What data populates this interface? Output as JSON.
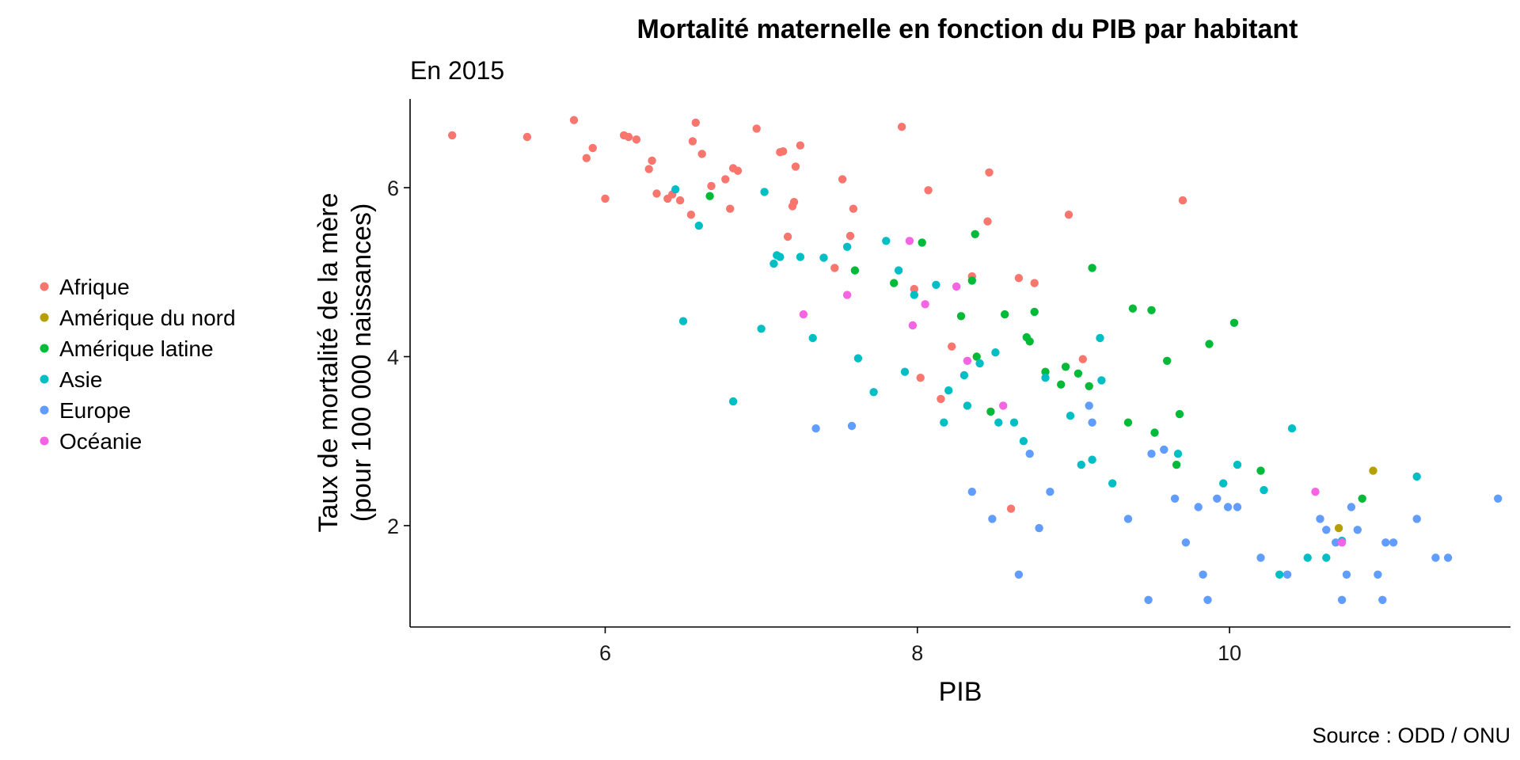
{
  "chart_data": {
    "type": "scatter",
    "title": "Mortalité maternelle en fonction du PIB par habitant",
    "subtitle": "En 2015",
    "xlabel": "PIB",
    "ylabel_lines": [
      "Taux de mortalité de la mère",
      "(pour 100 000 naissances)"
    ],
    "caption": "Source : ODD / ONU",
    "xlim": [
      4.75,
      11.8
    ],
    "ylim": [
      0.8,
      7.05
    ],
    "x_ticks": [
      6,
      8,
      10
    ],
    "y_ticks": [
      2,
      4,
      6
    ],
    "grid": false,
    "legend_position": "left",
    "series": [
      {
        "name": "Afrique",
        "color": "#F8766D",
        "points": [
          [
            5.02,
            6.62
          ],
          [
            5.5,
            6.6
          ],
          [
            5.8,
            6.8
          ],
          [
            5.88,
            6.35
          ],
          [
            5.92,
            6.47
          ],
          [
            6.0,
            5.87
          ],
          [
            6.12,
            6.62
          ],
          [
            6.15,
            6.6
          ],
          [
            6.2,
            6.57
          ],
          [
            6.28,
            6.22
          ],
          [
            6.3,
            6.32
          ],
          [
            6.33,
            5.93
          ],
          [
            6.4,
            5.87
          ],
          [
            6.43,
            5.92
          ],
          [
            6.48,
            5.85
          ],
          [
            6.55,
            5.68
          ],
          [
            6.56,
            6.55
          ],
          [
            6.58,
            6.77
          ],
          [
            6.62,
            6.4
          ],
          [
            6.68,
            6.02
          ],
          [
            6.77,
            6.1
          ],
          [
            6.8,
            5.75
          ],
          [
            6.82,
            6.23
          ],
          [
            6.85,
            6.2
          ],
          [
            6.97,
            6.7
          ],
          [
            7.12,
            6.42
          ],
          [
            7.14,
            6.43
          ],
          [
            7.17,
            5.42
          ],
          [
            7.2,
            5.78
          ],
          [
            7.21,
            5.83
          ],
          [
            7.22,
            6.25
          ],
          [
            7.25,
            6.5
          ],
          [
            7.47,
            5.05
          ],
          [
            7.52,
            6.1
          ],
          [
            7.57,
            5.43
          ],
          [
            7.59,
            5.75
          ],
          [
            7.9,
            6.72
          ],
          [
            7.98,
            4.8
          ],
          [
            8.02,
            3.75
          ],
          [
            8.07,
            5.97
          ],
          [
            8.15,
            3.5
          ],
          [
            8.22,
            4.12
          ],
          [
            8.35,
            4.95
          ],
          [
            8.45,
            5.6
          ],
          [
            8.46,
            6.18
          ],
          [
            8.6,
            2.2
          ],
          [
            8.65,
            4.93
          ],
          [
            8.75,
            4.87
          ],
          [
            8.97,
            5.68
          ],
          [
            9.06,
            3.97
          ],
          [
            9.7,
            5.85
          ]
        ]
      },
      {
        "name": "Amérique du nord",
        "color": "#B79F00",
        "points": [
          [
            10.7,
            1.97
          ],
          [
            10.92,
            2.65
          ]
        ]
      },
      {
        "name": "Amérique latine",
        "color": "#00BA38",
        "points": [
          [
            6.67,
            5.9
          ],
          [
            7.6,
            5.02
          ],
          [
            7.85,
            4.87
          ],
          [
            8.03,
            5.35
          ],
          [
            8.28,
            4.48
          ],
          [
            8.35,
            4.9
          ],
          [
            8.37,
            5.45
          ],
          [
            8.38,
            4.0
          ],
          [
            8.47,
            3.35
          ],
          [
            8.56,
            4.5
          ],
          [
            8.7,
            4.23
          ],
          [
            8.72,
            4.18
          ],
          [
            8.75,
            4.53
          ],
          [
            8.82,
            3.82
          ],
          [
            8.92,
            3.67
          ],
          [
            8.95,
            3.88
          ],
          [
            9.03,
            3.8
          ],
          [
            9.1,
            3.65
          ],
          [
            9.12,
            5.05
          ],
          [
            9.35,
            3.22
          ],
          [
            9.38,
            4.57
          ],
          [
            9.5,
            4.55
          ],
          [
            9.52,
            3.1
          ],
          [
            9.6,
            3.95
          ],
          [
            9.66,
            2.72
          ],
          [
            9.68,
            3.32
          ],
          [
            9.87,
            4.15
          ],
          [
            10.03,
            4.4
          ],
          [
            10.2,
            2.65
          ],
          [
            10.85,
            2.32
          ]
        ]
      },
      {
        "name": "Asie",
        "color": "#00BFC4",
        "points": [
          [
            6.45,
            5.98
          ],
          [
            6.5,
            4.42
          ],
          [
            6.6,
            5.55
          ],
          [
            6.82,
            3.47
          ],
          [
            7.0,
            4.33
          ],
          [
            7.02,
            5.95
          ],
          [
            7.08,
            5.1
          ],
          [
            7.1,
            5.2
          ],
          [
            7.12,
            5.18
          ],
          [
            7.25,
            5.18
          ],
          [
            7.33,
            4.22
          ],
          [
            7.4,
            5.17
          ],
          [
            7.55,
            5.3
          ],
          [
            7.62,
            3.98
          ],
          [
            7.72,
            3.58
          ],
          [
            7.8,
            5.37
          ],
          [
            7.88,
            5.02
          ],
          [
            7.92,
            3.82
          ],
          [
            7.98,
            4.73
          ],
          [
            8.12,
            4.85
          ],
          [
            8.17,
            3.22
          ],
          [
            8.2,
            3.6
          ],
          [
            8.3,
            3.78
          ],
          [
            8.32,
            3.42
          ],
          [
            8.4,
            3.92
          ],
          [
            8.5,
            4.05
          ],
          [
            8.52,
            3.22
          ],
          [
            8.62,
            3.22
          ],
          [
            8.68,
            3.0
          ],
          [
            8.82,
            3.75
          ],
          [
            8.98,
            3.3
          ],
          [
            9.05,
            2.72
          ],
          [
            9.12,
            2.78
          ],
          [
            9.17,
            4.22
          ],
          [
            9.18,
            3.72
          ],
          [
            9.25,
            2.5
          ],
          [
            9.67,
            2.85
          ],
          [
            9.96,
            2.5
          ],
          [
            10.05,
            2.72
          ],
          [
            10.22,
            2.42
          ],
          [
            10.32,
            1.42
          ],
          [
            10.4,
            3.15
          ],
          [
            10.5,
            1.62
          ],
          [
            10.62,
            1.62
          ],
          [
            10.72,
            1.82
          ],
          [
            11.2,
            2.58
          ]
        ]
      },
      {
        "name": "Europe",
        "color": "#619CFF",
        "points": [
          [
            7.35,
            3.15
          ],
          [
            7.58,
            3.18
          ],
          [
            8.35,
            2.4
          ],
          [
            8.48,
            2.08
          ],
          [
            8.65,
            1.42
          ],
          [
            8.72,
            2.85
          ],
          [
            8.78,
            1.97
          ],
          [
            8.85,
            2.4
          ],
          [
            9.1,
            3.42
          ],
          [
            9.12,
            3.22
          ],
          [
            9.35,
            2.08
          ],
          [
            9.48,
            1.12
          ],
          [
            9.5,
            2.85
          ],
          [
            9.58,
            2.9
          ],
          [
            9.65,
            2.32
          ],
          [
            9.72,
            1.8
          ],
          [
            9.8,
            2.22
          ],
          [
            9.83,
            1.42
          ],
          [
            9.86,
            1.12
          ],
          [
            9.92,
            2.32
          ],
          [
            9.99,
            2.22
          ],
          [
            10.05,
            2.22
          ],
          [
            10.2,
            1.62
          ],
          [
            10.37,
            1.42
          ],
          [
            10.58,
            2.08
          ],
          [
            10.62,
            1.95
          ],
          [
            10.68,
            1.8
          ],
          [
            10.72,
            1.12
          ],
          [
            10.75,
            1.42
          ],
          [
            10.78,
            2.22
          ],
          [
            10.82,
            1.95
          ],
          [
            10.95,
            1.42
          ],
          [
            10.98,
            1.12
          ],
          [
            11.0,
            1.8
          ],
          [
            11.05,
            1.8
          ],
          [
            11.2,
            2.08
          ],
          [
            11.32,
            1.62
          ],
          [
            11.4,
            1.62
          ],
          [
            11.72,
            2.32
          ]
        ]
      },
      {
        "name": "Océanie",
        "color": "#F564E3",
        "points": [
          [
            7.27,
            4.5
          ],
          [
            7.55,
            4.73
          ],
          [
            7.95,
            5.37
          ],
          [
            7.97,
            4.37
          ],
          [
            8.05,
            4.62
          ],
          [
            8.25,
            4.83
          ],
          [
            8.32,
            3.95
          ],
          [
            8.55,
            3.42
          ],
          [
            10.55,
            2.4
          ],
          [
            10.72,
            1.8
          ]
        ]
      }
    ]
  }
}
